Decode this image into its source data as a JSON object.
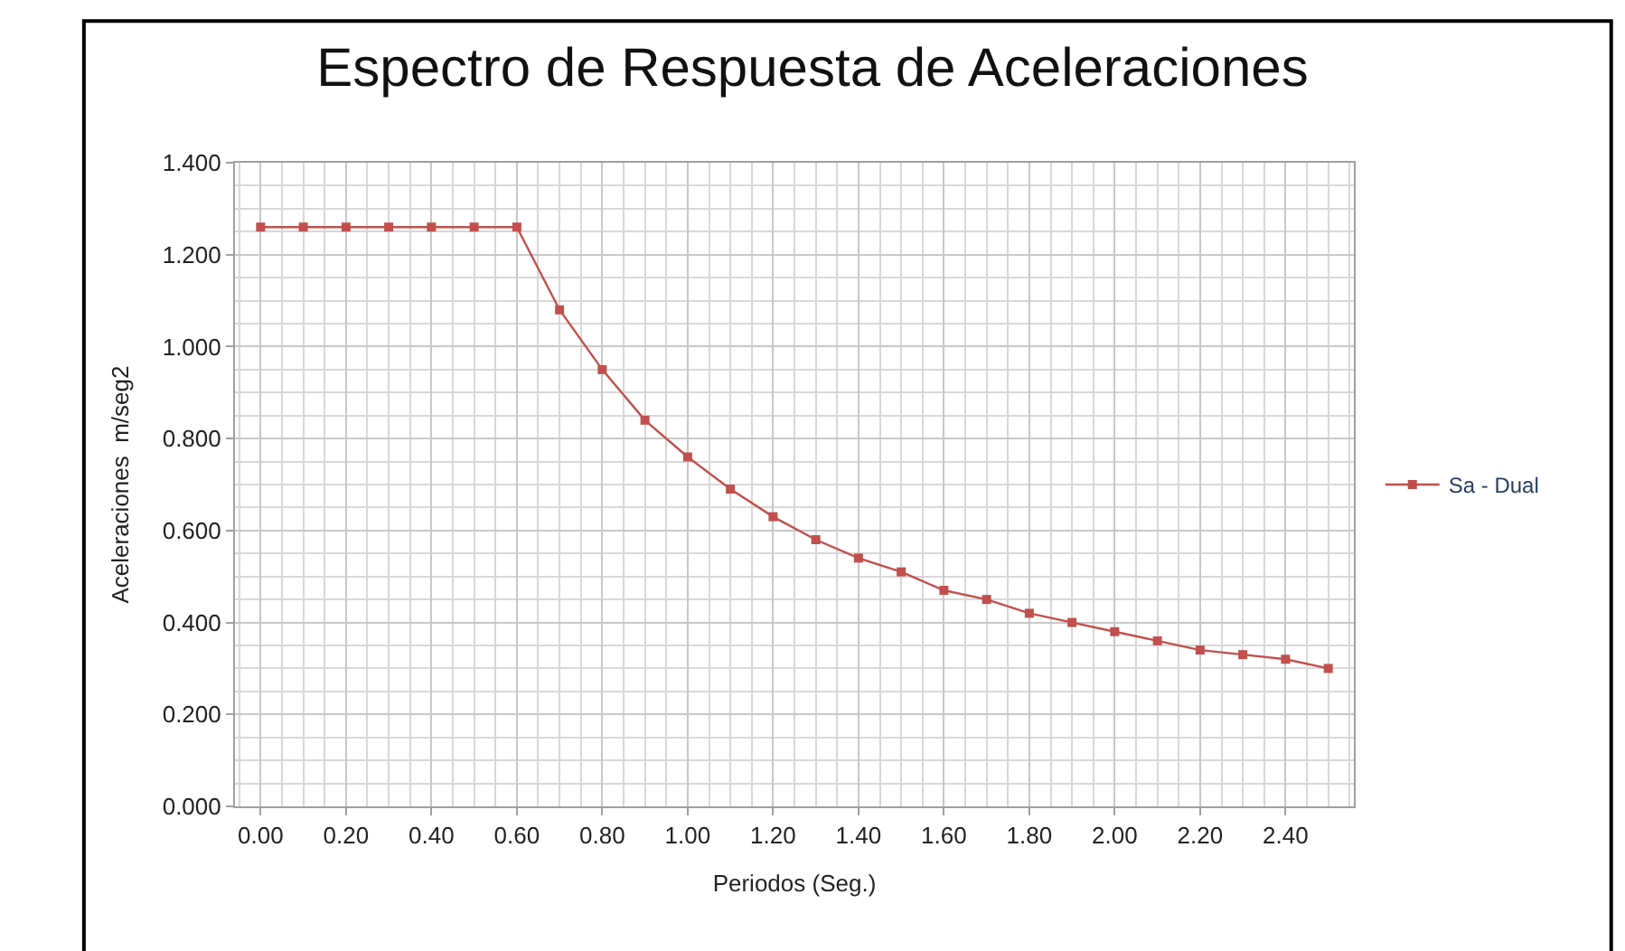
{
  "chart_data": {
    "type": "line",
    "title": "Espectro de Respuesta de Aceleraciones",
    "xlabel": "Periodos (Seg.)",
    "ylabel": "Aceleraciones  m/seg2",
    "x": [
      0.0,
      0.1,
      0.2,
      0.3,
      0.4,
      0.5,
      0.6,
      0.7,
      0.8,
      0.9,
      1.0,
      1.1,
      1.2,
      1.3,
      1.4,
      1.5,
      1.6,
      1.7,
      1.8,
      1.9,
      2.0,
      2.1,
      2.2,
      2.3,
      2.4,
      2.5
    ],
    "series": [
      {
        "name": "Sa - Dual",
        "color": "#c0504d",
        "values": [
          1.26,
          1.26,
          1.26,
          1.26,
          1.26,
          1.26,
          1.26,
          1.08,
          0.95,
          0.84,
          0.76,
          0.69,
          0.63,
          0.58,
          0.54,
          0.51,
          0.47,
          0.45,
          0.42,
          0.4,
          0.38,
          0.36,
          0.34,
          0.33,
          0.32,
          0.3
        ]
      }
    ],
    "xlim": [
      -0.06,
      2.56
    ],
    "xticks": [
      {
        "value": 0,
        "label": "0.00"
      },
      {
        "value": 0.2,
        "label": "0.20"
      },
      {
        "value": 0.4,
        "label": "0.40"
      },
      {
        "value": 0.6,
        "label": "0.60"
      },
      {
        "value": 0.8,
        "label": "0.80"
      },
      {
        "value": 1.0,
        "label": "1.00"
      },
      {
        "value": 1.2,
        "label": "1.20"
      },
      {
        "value": 1.4,
        "label": "1.40"
      },
      {
        "value": 1.6,
        "label": "1.60"
      },
      {
        "value": 1.8,
        "label": "1.80"
      },
      {
        "value": 2.0,
        "label": "2.00"
      },
      {
        "value": 2.2,
        "label": "2.20"
      },
      {
        "value": 2.4,
        "label": "2.40"
      }
    ],
    "ylim": [
      0,
      1.4
    ],
    "yticks": [
      {
        "value": 0,
        "label": "0.000"
      },
      {
        "value": 0.2,
        "label": "0.200"
      },
      {
        "value": 0.4,
        "label": "0.400"
      },
      {
        "value": 0.6,
        "label": "0.600"
      },
      {
        "value": 0.8,
        "label": "0.800"
      },
      {
        "value": 1.0,
        "label": "1.000"
      },
      {
        "value": 1.2,
        "label": "1.200"
      },
      {
        "value": 1.4,
        "label": "1.400"
      }
    ],
    "grid": true,
    "legend": "right",
    "marker": "square",
    "line_style": "solid"
  }
}
